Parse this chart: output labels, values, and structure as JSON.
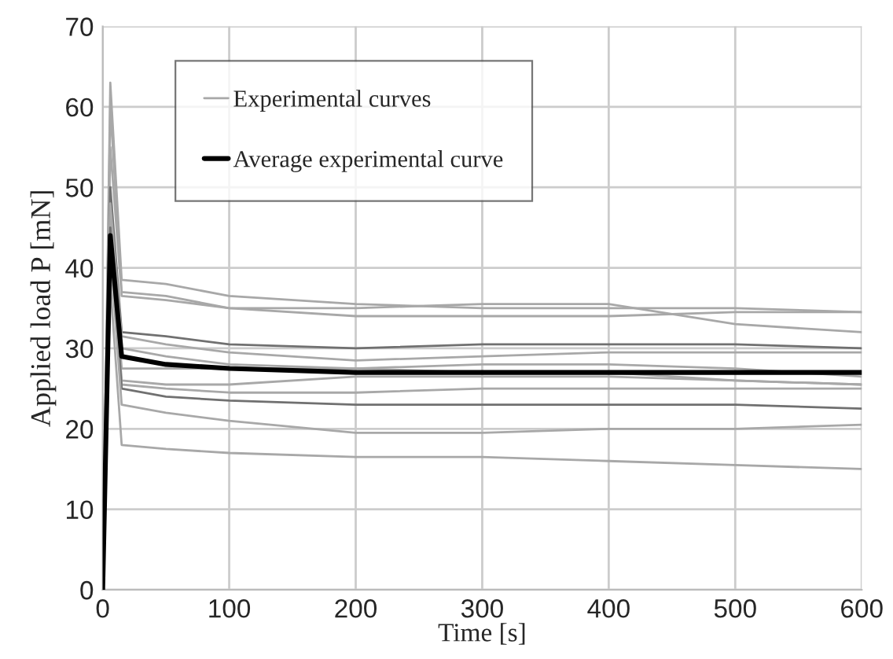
{
  "chart_data": {
    "type": "line",
    "xlabel": "Time [s]",
    "ylabel": "Applied load P [mN]",
    "x": [
      0,
      6,
      15,
      50,
      100,
      200,
      300,
      400,
      500,
      600
    ],
    "series": [
      {
        "name": "Experimental curves",
        "color": "#a8a8a8",
        "values": [
          0,
          63,
          38.5,
          38,
          36.5,
          35.5,
          35,
          35,
          35,
          34.5
        ]
      },
      {
        "color": "#a8a8a8",
        "values": [
          0,
          60,
          37,
          36.5,
          35,
          35,
          35.5,
          35.5,
          33,
          32
        ]
      },
      {
        "color": "#a8a8a8",
        "values": [
          0,
          55,
          36.5,
          36,
          35,
          34,
          34,
          34,
          34.5,
          34.5
        ]
      },
      {
        "color": "#707070",
        "values": [
          0,
          50,
          32,
          31.5,
          30.5,
          30,
          30.5,
          30.5,
          30.5,
          30
        ]
      },
      {
        "color": "#a8a8a8",
        "values": [
          0,
          48,
          31.5,
          30.5,
          29.5,
          28.5,
          29,
          29.5,
          29.5,
          29.5
        ]
      },
      {
        "color": "#a8a8a8",
        "values": [
          0,
          47,
          30,
          29,
          28,
          27.5,
          28,
          28,
          27.5,
          26.5
        ]
      },
      {
        "color": "#a8a8a8",
        "values": [
          0,
          46,
          27.5,
          27.5,
          27.5,
          27.5,
          27,
          27,
          26,
          25.5
        ]
      },
      {
        "color": "#a8a8a8",
        "values": [
          0,
          45,
          26,
          25.5,
          25.5,
          26.5,
          26.5,
          26.5,
          26,
          25.5
        ]
      },
      {
        "color": "#a8a8a8",
        "values": [
          0,
          44,
          25.5,
          25,
          24.5,
          24.5,
          25,
          25,
          25,
          25
        ]
      },
      {
        "color": "#707070",
        "values": [
          0,
          45,
          25,
          24,
          23.5,
          23,
          23,
          23,
          23,
          22.5
        ]
      },
      {
        "color": "#a8a8a8",
        "values": [
          0,
          42,
          23,
          22,
          21,
          19.5,
          19.5,
          20,
          20,
          20.5
        ]
      },
      {
        "color": "#a8a8a8",
        "values": [
          0,
          38,
          18,
          17.5,
          17,
          16.5,
          16.5,
          16,
          15.5,
          15
        ]
      },
      {
        "name": "Average experimental curve",
        "color": "#000000",
        "values": [
          0,
          44,
          29,
          28,
          27.5,
          27,
          27,
          27,
          27,
          27
        ]
      }
    ],
    "xlim": [
      0,
      600
    ],
    "xticks": [
      0,
      100,
      200,
      300,
      400,
      500,
      600
    ],
    "ylim": [
      0,
      70
    ],
    "yticks": [
      0,
      10,
      20,
      30,
      40,
      50,
      60,
      70
    ],
    "grid": true,
    "legend": "top left",
    "marker": "none",
    "line_style": "solid"
  }
}
